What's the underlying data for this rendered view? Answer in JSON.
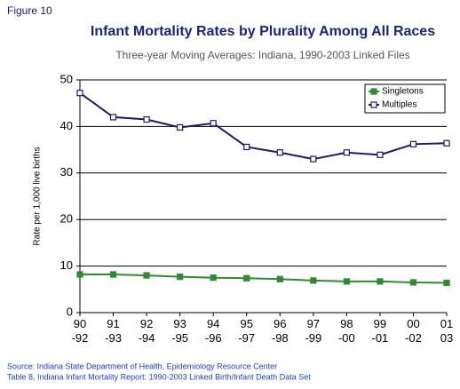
{
  "figure_label": "Figure 10",
  "chart_data": {
    "type": "line",
    "title": "Infant Mortality Rates by Plurality Among All Races",
    "subtitle": "Three-year Moving Averages: Indiana, 1990-2003 Linked Files",
    "y_label": "Rate per 1,000 live births",
    "categories": [
      "90\n-92",
      "91\n-93",
      "92\n-94",
      "93\n-95",
      "94\n-96",
      "95\n-97",
      "96\n-98",
      "97\n-99",
      "98\n-00",
      "99\n-01",
      "00\n-02",
      "01\n03"
    ],
    "series": [
      {
        "name": "Singletons",
        "color": "#2e8b2e",
        "marker": "filled",
        "values": [
          8.2,
          8.2,
          8.0,
          7.7,
          7.5,
          7.4,
          7.2,
          6.9,
          6.7,
          6.7,
          6.5,
          6.4
        ]
      },
      {
        "name": "Multiples",
        "color": "#1a1a6e",
        "marker": "hollow",
        "values": [
          47.2,
          42.0,
          41.5,
          39.8,
          40.7,
          35.6,
          34.4,
          33.0,
          34.4,
          33.9,
          36.2,
          36.4
        ]
      }
    ],
    "ylim": [
      0,
      50
    ],
    "yticks": [
      0,
      10,
      20,
      30,
      40,
      50
    ],
    "grid": true,
    "legend": "upper right"
  },
  "source": [
    "Source: Indiana State Department of Health, Epidemiology Resource Center",
    "Table 8, Indiana Infant Mortality Report: 1990-2003 Linked Birth/Infant Death Data Set"
  ]
}
